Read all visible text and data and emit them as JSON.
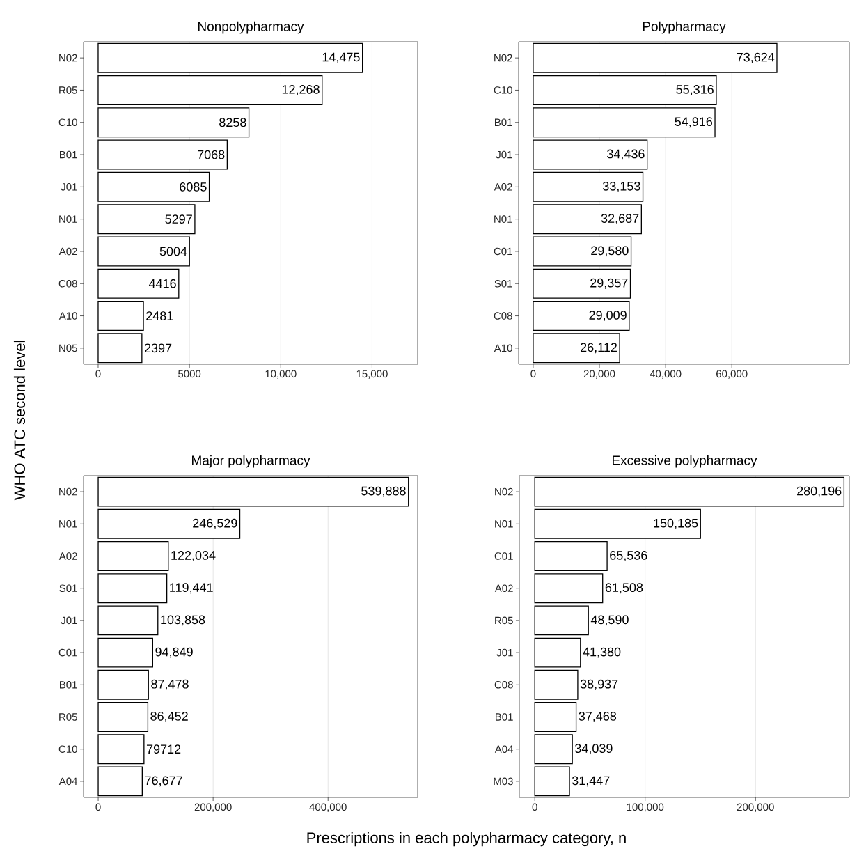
{
  "chart_data": [
    {
      "type": "bar",
      "orientation": "horizontal",
      "title": "Nonpolypharmacy",
      "ylabel": "WHO ATC second level",
      "categories": [
        "N02",
        "R05",
        "C10",
        "B01",
        "J01",
        "N01",
        "A02",
        "C08",
        "A10",
        "N05"
      ],
      "values": [
        14475,
        12268,
        8258,
        7068,
        6085,
        5297,
        5004,
        4416,
        2481,
        2397
      ],
      "value_labels": [
        "14,475",
        "12,268",
        "8258",
        "7068",
        "6085",
        "5297",
        "5004",
        "4416",
        "2481",
        "2397"
      ],
      "color": "#ffffff",
      "xlim": [
        -800,
        17500
      ],
      "xticks": [
        0,
        5000,
        {
          "value": 10000,
          "label": "10,000"
        },
        {
          "value": 15000,
          "label": "15,000"
        }
      ],
      "grid": "x",
      "legend": false
    },
    {
      "type": "bar",
      "orientation": "horizontal",
      "title": "Polypharmacy",
      "categories": [
        "N02",
        "C10",
        "B01",
        "J01",
        "A02",
        "N01",
        "C01",
        "S01",
        "C08",
        "A10"
      ],
      "values": [
        73624,
        55316,
        54916,
        34436,
        33153,
        32687,
        29580,
        29357,
        29009,
        26112
      ],
      "value_labels": [
        "73,624",
        "55,316",
        "54,916",
        "34,436",
        "33,153",
        "32,687",
        "29,580",
        "29,357",
        "29,009",
        "26,112"
      ],
      "color": "#ffffff",
      "xlim": [
        -4400,
        95500
      ],
      "xticks": [
        0,
        {
          "value": 20000,
          "label": "20,000"
        },
        {
          "value": 40000,
          "label": "40,000"
        },
        {
          "value": 60000,
          "label": "60,000"
        }
      ],
      "grid": "x",
      "legend": false
    },
    {
      "type": "bar",
      "orientation": "horizontal",
      "title": "Major polypharmacy",
      "xlabel": "Prescriptions in each polypharmacy category, n",
      "categories": [
        "N02",
        "N01",
        "A02",
        "S01",
        "J01",
        "C01",
        "B01",
        "R05",
        "C10",
        "A04"
      ],
      "values": [
        539888,
        246529,
        122034,
        119441,
        103858,
        94849,
        87478,
        86452,
        79712,
        76677
      ],
      "value_labels": [
        "539,888",
        "246,529",
        "122,034",
        "119,441",
        "103,858",
        "94,849",
        "87,478",
        "86,452",
        "79712",
        "76,677"
      ],
      "color": "#ffffff",
      "xlim": [
        -25500,
        556000
      ],
      "xticks": [
        0,
        {
          "value": 200000,
          "label": "200,000"
        },
        {
          "value": 400000,
          "label": "400,000"
        }
      ],
      "grid": "x",
      "legend": false
    },
    {
      "type": "bar",
      "orientation": "horizontal",
      "title": "Excessive polypharmacy",
      "categories": [
        "N02",
        "N01",
        "C01",
        "A02",
        "R05",
        "J01",
        "C08",
        "B01",
        "A04",
        "M03"
      ],
      "values": [
        280196,
        150185,
        65536,
        61508,
        48590,
        41380,
        38937,
        37468,
        34039,
        31447
      ],
      "value_labels": [
        "280,196",
        "150,185",
        "65,536",
        "61,508",
        "48,590",
        "41,380",
        "38,937",
        "37,468",
        "34,039",
        "31,447"
      ],
      "color": "#ffffff",
      "xlim": [
        -14000,
        285000
      ],
      "xticks": [
        0,
        {
          "value": 100000,
          "label": "100,000"
        },
        {
          "value": 200000,
          "label": "200,000"
        }
      ],
      "grid": "x",
      "legend": false
    }
  ]
}
